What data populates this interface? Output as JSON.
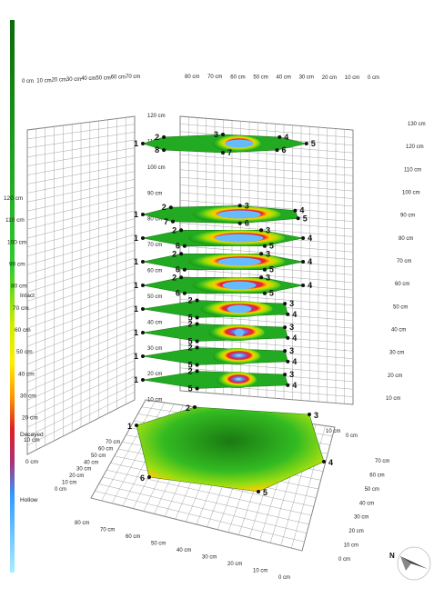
{
  "colors": {
    "background": "#ffffff",
    "grid": "#9a9a9a",
    "intact": "#1a9a1a",
    "decayed": "#d42020",
    "hollow": "#3399ff"
  },
  "legend": {
    "scale": [
      "120 cm",
      "110 cm",
      "100 cm",
      "90 cm",
      "80 cm",
      "70 cm",
      "60 cm",
      "50 cm",
      "40 cm",
      "30 cm",
      "20 cm",
      "10 cm",
      "0 cm"
    ],
    "intact": "Intact",
    "decayed": "Decayed",
    "hollow": "Hollow"
  },
  "compass": {
    "label": "N",
    "icon": "north-arrow-icon"
  },
  "chart_data": {
    "type": "3d-tomography-stack",
    "title": "",
    "color_scale": [
      {
        "label": "Intact",
        "color": "#1a9a1a"
      },
      {
        "label": "Decayed",
        "color": "#d42020"
      },
      {
        "label": "Hollow",
        "color": "#3399ff"
      }
    ],
    "axes": {
      "vertical_left": [
        "120 cm",
        "110 cm",
        "100 cm",
        "90 cm",
        "80 cm",
        "70 cm",
        "60 cm",
        "50 cm",
        "40 cm",
        "30 cm",
        "20 cm",
        "10 cm",
        "0 cm"
      ],
      "vertical_right": [
        "130 cm",
        "120 cm",
        "110 cm",
        "100 cm",
        "90 cm",
        "80 cm",
        "70 cm",
        "60 cm",
        "50 cm",
        "40 cm",
        "30 cm",
        "20 cm",
        "10 cm"
      ],
      "top_left": [
        "0 cm",
        "10 cm",
        "20 cm",
        "30 cm",
        "40 cm",
        "50 cm",
        "60 cm",
        "70 cm"
      ],
      "top_right": [
        "80 cm",
        "70 cm",
        "60 cm",
        "50 cm",
        "40 cm",
        "30 cm",
        "20 cm",
        "10 cm",
        "0 cm"
      ],
      "floor_left": [
        "70 cm",
        "60 cm",
        "50 cm",
        "40 cm",
        "30 cm",
        "20 cm",
        "10 cm",
        "0 cm"
      ],
      "floor_right": [
        "70 cm",
        "60 cm",
        "50 cm",
        "40 cm",
        "30 cm",
        "20 cm",
        "10 cm",
        "0 cm"
      ],
      "floor_front": [
        "80 cm",
        "70 cm",
        "60 cm",
        "50 cm",
        "40 cm",
        "30 cm",
        "20 cm",
        "10 cm",
        "0 cm"
      ],
      "floor_side": [
        "10 cm",
        "0 cm"
      ]
    },
    "layers": [
      {
        "height": 120,
        "sensors": [
          "1",
          "2",
          "3",
          "4",
          "5",
          "6",
          "7",
          "8"
        ],
        "decay": 0.3,
        "hollow": 0.3
      },
      {
        "height": 90,
        "sensors": [
          "1",
          "2",
          "3",
          "4",
          "5",
          "6",
          "7"
        ],
        "decay": 0.55,
        "hollow": 0.45
      },
      {
        "height": 80,
        "sensors": [
          "1",
          "2",
          "3",
          "4",
          "5",
          "6"
        ],
        "decay": 0.6,
        "hollow": 0.5
      },
      {
        "height": 70,
        "sensors": [
          "1",
          "2",
          "3",
          "4",
          "5",
          "6"
        ],
        "decay": 0.6,
        "hollow": 0.45
      },
      {
        "height": 60,
        "sensors": [
          "1",
          "2",
          "3",
          "4",
          "5",
          "6"
        ],
        "decay": 0.55,
        "hollow": 0.35
      },
      {
        "height": 50,
        "sensors": [
          "1",
          "2",
          "3",
          "4",
          "5"
        ],
        "decay": 0.45,
        "hollow": 0.25
      },
      {
        "height": 40,
        "sensors": [
          "1",
          "2",
          "3",
          "4",
          "5"
        ],
        "decay": 0.35,
        "hollow": 0.1
      },
      {
        "height": 30,
        "sensors": [
          "1",
          "2",
          "3",
          "4",
          "5"
        ],
        "decay": 0.3,
        "hollow": 0.0
      },
      {
        "height": 20,
        "sensors": [
          "1",
          "2",
          "3",
          "4",
          "5"
        ],
        "decay": 0.25,
        "hollow": 0.0
      },
      {
        "height": 0,
        "sensors": [
          "1",
          "2",
          "3",
          "4",
          "5",
          "6"
        ],
        "decay": 0.1,
        "hollow": 0.0
      }
    ]
  }
}
